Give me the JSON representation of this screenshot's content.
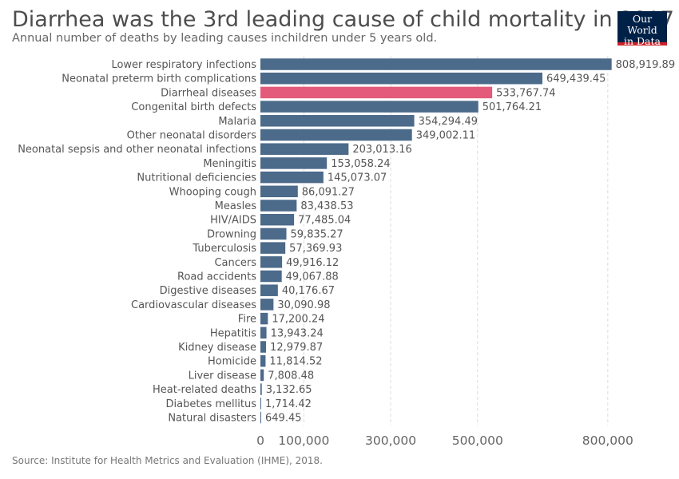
{
  "header": {
    "title": "Diarrhea was the 3rd leading cause of child mortality in 2017",
    "subtitle": "Annual number of deaths by leading causes inchildren under 5 years old."
  },
  "logo": {
    "line1": "Our World",
    "line2": "in Data"
  },
  "footer": {
    "source": "Source: Institute for Health Metrics and Evaluation (IHME), 2018."
  },
  "colors": {
    "bar": "#4c6a8a",
    "highlight": "#e35a7a",
    "grid": "#dddddd",
    "label": "#555555"
  },
  "chart_data": {
    "type": "bar",
    "orientation": "horizontal",
    "highlight": "Diarrheal diseases",
    "xlim": [
      0,
      850000
    ],
    "xticks": [
      0,
      100000,
      300000,
      500000,
      800000
    ],
    "xtick_labels": [
      "0",
      "100,000",
      "300,000",
      "500,000",
      "800,000"
    ],
    "grid": true,
    "categories": [
      "Lower respiratory infections",
      "Neonatal preterm birth complications",
      "Diarrheal diseases",
      "Congenital birth defects",
      "Malaria",
      "Other neonatal disorders",
      "Neonatal sepsis and other neonatal infections",
      "Meningitis",
      "Nutritional deficiencies",
      "Whooping cough",
      "Measles",
      "HIV/AIDS",
      "Drowning",
      "Tuberculosis",
      "Cancers",
      "Road accidents",
      "Digestive diseases",
      "Cardiovascular diseases",
      "Fire",
      "Hepatitis",
      "Kidney disease",
      "Homicide",
      "Liver disease",
      "Heat-related deaths",
      "Diabetes mellitus",
      "Natural disasters"
    ],
    "values": [
      808919.89,
      649439.45,
      533767.74,
      501764.21,
      354294.49,
      349002.11,
      203013.16,
      153058.24,
      145073.07,
      86091.27,
      83438.53,
      77485.04,
      59835.27,
      57369.93,
      49916.12,
      49067.88,
      40176.67,
      30090.98,
      17200.24,
      13943.24,
      12979.87,
      11814.52,
      7808.48,
      3132.65,
      1714.42,
      649.45
    ],
    "value_labels": [
      "808,919.89",
      "649,439.45",
      "533,767.74",
      "501,764.21",
      "354,294.49",
      "349,002.11",
      "203,013.16",
      "153,058.24",
      "145,073.07",
      "86,091.27",
      "83,438.53",
      "77,485.04",
      "59,835.27",
      "57,369.93",
      "49,916.12",
      "49,067.88",
      "40,176.67",
      "30,090.98",
      "17,200.24",
      "13,943.24",
      "12,979.87",
      "11,814.52",
      "7,808.48",
      "3,132.65",
      "1,714.42",
      "649.45"
    ]
  }
}
